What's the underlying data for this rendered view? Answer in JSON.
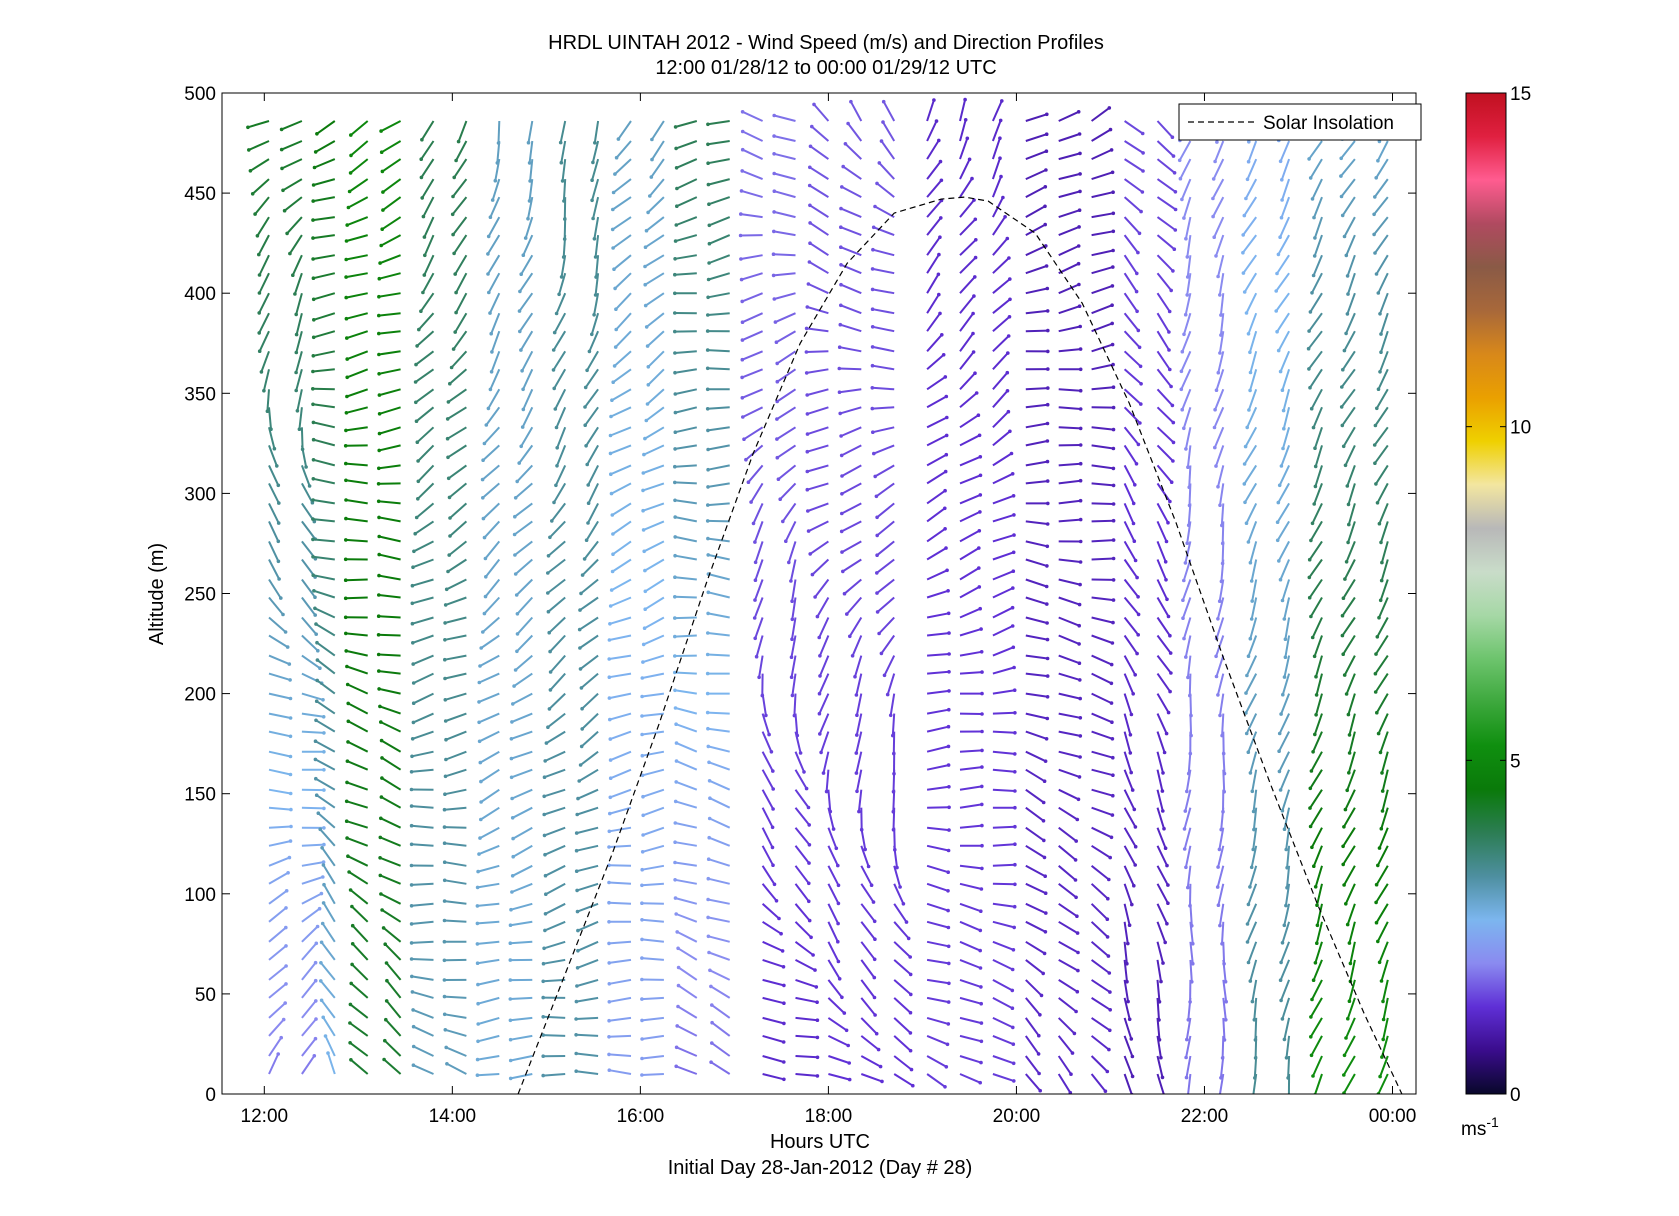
{
  "chart_data": {
    "type": "wind-barb-profile",
    "title": "HRDL UINTAH 2012 - Wind Speed (m/s) and Direction Profiles",
    "subtitle": "12:00 01/28/12 to 00:00 01/29/12  UTC",
    "xlabel": "Hours UTC",
    "xlabel2": "Initial Day 28-Jan-2012 (Day # 28)",
    "ylabel": "Altitude (m)",
    "xlim": [
      11.55,
      24.25
    ],
    "ylim": [
      0,
      500
    ],
    "x_ticks": [
      12,
      14,
      16,
      18,
      20,
      22,
      24
    ],
    "x_tick_labels": [
      "12:00",
      "14:00",
      "16:00",
      "18:00",
      "20:00",
      "22:00",
      "00:00"
    ],
    "y_ticks": [
      0,
      50,
      100,
      150,
      200,
      250,
      300,
      350,
      400,
      450,
      500
    ],
    "y_tick_labels": [
      "0",
      "50",
      "100",
      "150",
      "200",
      "250",
      "300",
      "350",
      "400",
      "450",
      "500"
    ],
    "legend": {
      "label": "Solar Insolation",
      "placement": "top-right"
    },
    "solar_insolation": {
      "style": "dashed",
      "color": "#000000",
      "x": [
        14.7,
        15.2,
        15.7,
        16.2,
        16.7,
        17.2,
        17.7,
        18.2,
        18.7,
        19.2,
        19.45,
        19.7,
        20.2,
        20.7,
        21.2,
        21.7,
        22.2,
        22.7,
        23.2,
        23.7,
        24.1
      ],
      "y": [
        0,
        60,
        120,
        185,
        255,
        320,
        375,
        415,
        440,
        447,
        448,
        446,
        430,
        395,
        345,
        285,
        218,
        155,
        95,
        40,
        0
      ]
    },
    "colorbar": {
      "min": 0,
      "max": 15,
      "ticks": [
        0,
        5,
        10,
        15
      ],
      "tick_labels": [
        "0",
        "5",
        "10",
        "15"
      ],
      "units": "ms",
      "units_exponent": "-1",
      "colormap": [
        "#08082a",
        "#3a0c8c",
        "#5f2fd6",
        "#8a8af0",
        "#7cb6ef",
        "#4e8fa0",
        "#2c7d54",
        "#0a7a0a",
        "#0f8f0f",
        "#3da83d",
        "#6dc46d",
        "#a6d8a6",
        "#c9dcc9",
        "#b8b8b8",
        "#f3e6a0",
        "#efd000",
        "#eaa000",
        "#d8881a",
        "#a8683a",
        "#8a5a46",
        "#b04a60",
        "#ff5c90",
        "#e02040",
        "#c01020"
      ]
    },
    "profile_times": [
      12.05,
      12.4,
      12.75,
      13.1,
      13.45,
      13.8,
      14.15,
      14.5,
      14.85,
      15.2,
      15.55,
      15.9,
      16.25,
      16.6,
      16.95,
      17.3,
      17.65,
      18.0,
      18.35,
      18.7,
      19.05,
      19.4,
      19.75,
      20.1,
      20.45,
      20.8,
      21.15,
      21.5,
      21.85,
      22.2,
      22.55,
      22.9,
      23.25,
      23.6,
      23.95
    ],
    "altitudes": [
      10,
      19,
      29,
      38,
      48,
      57,
      67,
      76,
      86,
      95,
      105,
      114,
      124,
      133,
      143,
      152,
      162,
      171,
      181,
      190,
      200,
      210,
      219,
      229,
      238,
      248,
      257,
      267,
      276,
      286,
      295,
      305,
      314,
      324,
      333,
      343,
      352,
      362,
      371,
      381,
      390,
      400,
      410,
      419,
      429,
      438,
      448,
      457,
      467,
      476,
      486
    ],
    "segments": [
      {
        "t0": 12.0,
        "t1": 12.5,
        "dir_low": 20,
        "dir_high": 250,
        "spd_low": 1.8,
        "spd_high": 4.4
      },
      {
        "t0": 12.5,
        "t1": 13.0,
        "dir_low": 340,
        "dir_high": 240,
        "spd_low": 2.6,
        "spd_high": 4.6
      },
      {
        "t0": 13.0,
        "t1": 13.8,
        "dir_low": 320,
        "dir_high": 235,
        "spd_low": 4.2,
        "spd_high": 5.0
      },
      {
        "t0": 13.8,
        "t1": 14.2,
        "dir_low": 290,
        "dir_high": 200,
        "spd_low": 3.0,
        "spd_high": 4.0
      },
      {
        "t0": 14.2,
        "t1": 15.0,
        "dir_low": 270,
        "dir_high": 190,
        "spd_low": 2.8,
        "spd_high": 3.0
      },
      {
        "t0": 15.0,
        "t1": 15.6,
        "dir_low": 270,
        "dir_high": 180,
        "spd_low": 3.2,
        "spd_high": 3.4
      },
      {
        "t0": 15.6,
        "t1": 16.3,
        "dir_low": 275,
        "dir_high": 220,
        "spd_low": 2.2,
        "spd_high": 3.0
      },
      {
        "t0": 16.3,
        "t1": 17.0,
        "dir_low": 300,
        "dir_high": 250,
        "spd_low": 1.7,
        "spd_high": 4.0
      },
      {
        "t0": 17.0,
        "t1": 18.0,
        "dir_low": 90,
        "dir_high": 300,
        "spd_low": 1.2,
        "spd_high": 1.8
      },
      {
        "t0": 18.0,
        "t1": 19.0,
        "dir_low": 110,
        "dir_high": 330,
        "spd_low": 1.3,
        "spd_high": 1.6
      },
      {
        "t0": 19.0,
        "t1": 20.0,
        "dir_low": 120,
        "dir_high": 20,
        "spd_low": 1.4,
        "spd_high": 1.2
      },
      {
        "t0": 20.0,
        "t1": 21.0,
        "dir_low": 140,
        "dir_high": 60,
        "spd_low": 1.2,
        "spd_high": 1.0
      },
      {
        "t0": 21.0,
        "t1": 21.6,
        "dir_low": 170,
        "dir_high": 130,
        "spd_low": 1.0,
        "spd_high": 1.5
      },
      {
        "t0": 21.6,
        "t1": 22.4,
        "dir_low": 180,
        "dir_high": 200,
        "spd_low": 1.8,
        "spd_high": 2.0
      },
      {
        "t0": 22.4,
        "t1": 23.0,
        "dir_low": 190,
        "dir_high": 210,
        "spd_low": 3.4,
        "spd_high": 2.4
      },
      {
        "t0": 23.0,
        "t1": 24.1,
        "dir_low": 200,
        "dir_high": 210,
        "spd_low": 5.2,
        "spd_high": 2.8
      }
    ]
  }
}
